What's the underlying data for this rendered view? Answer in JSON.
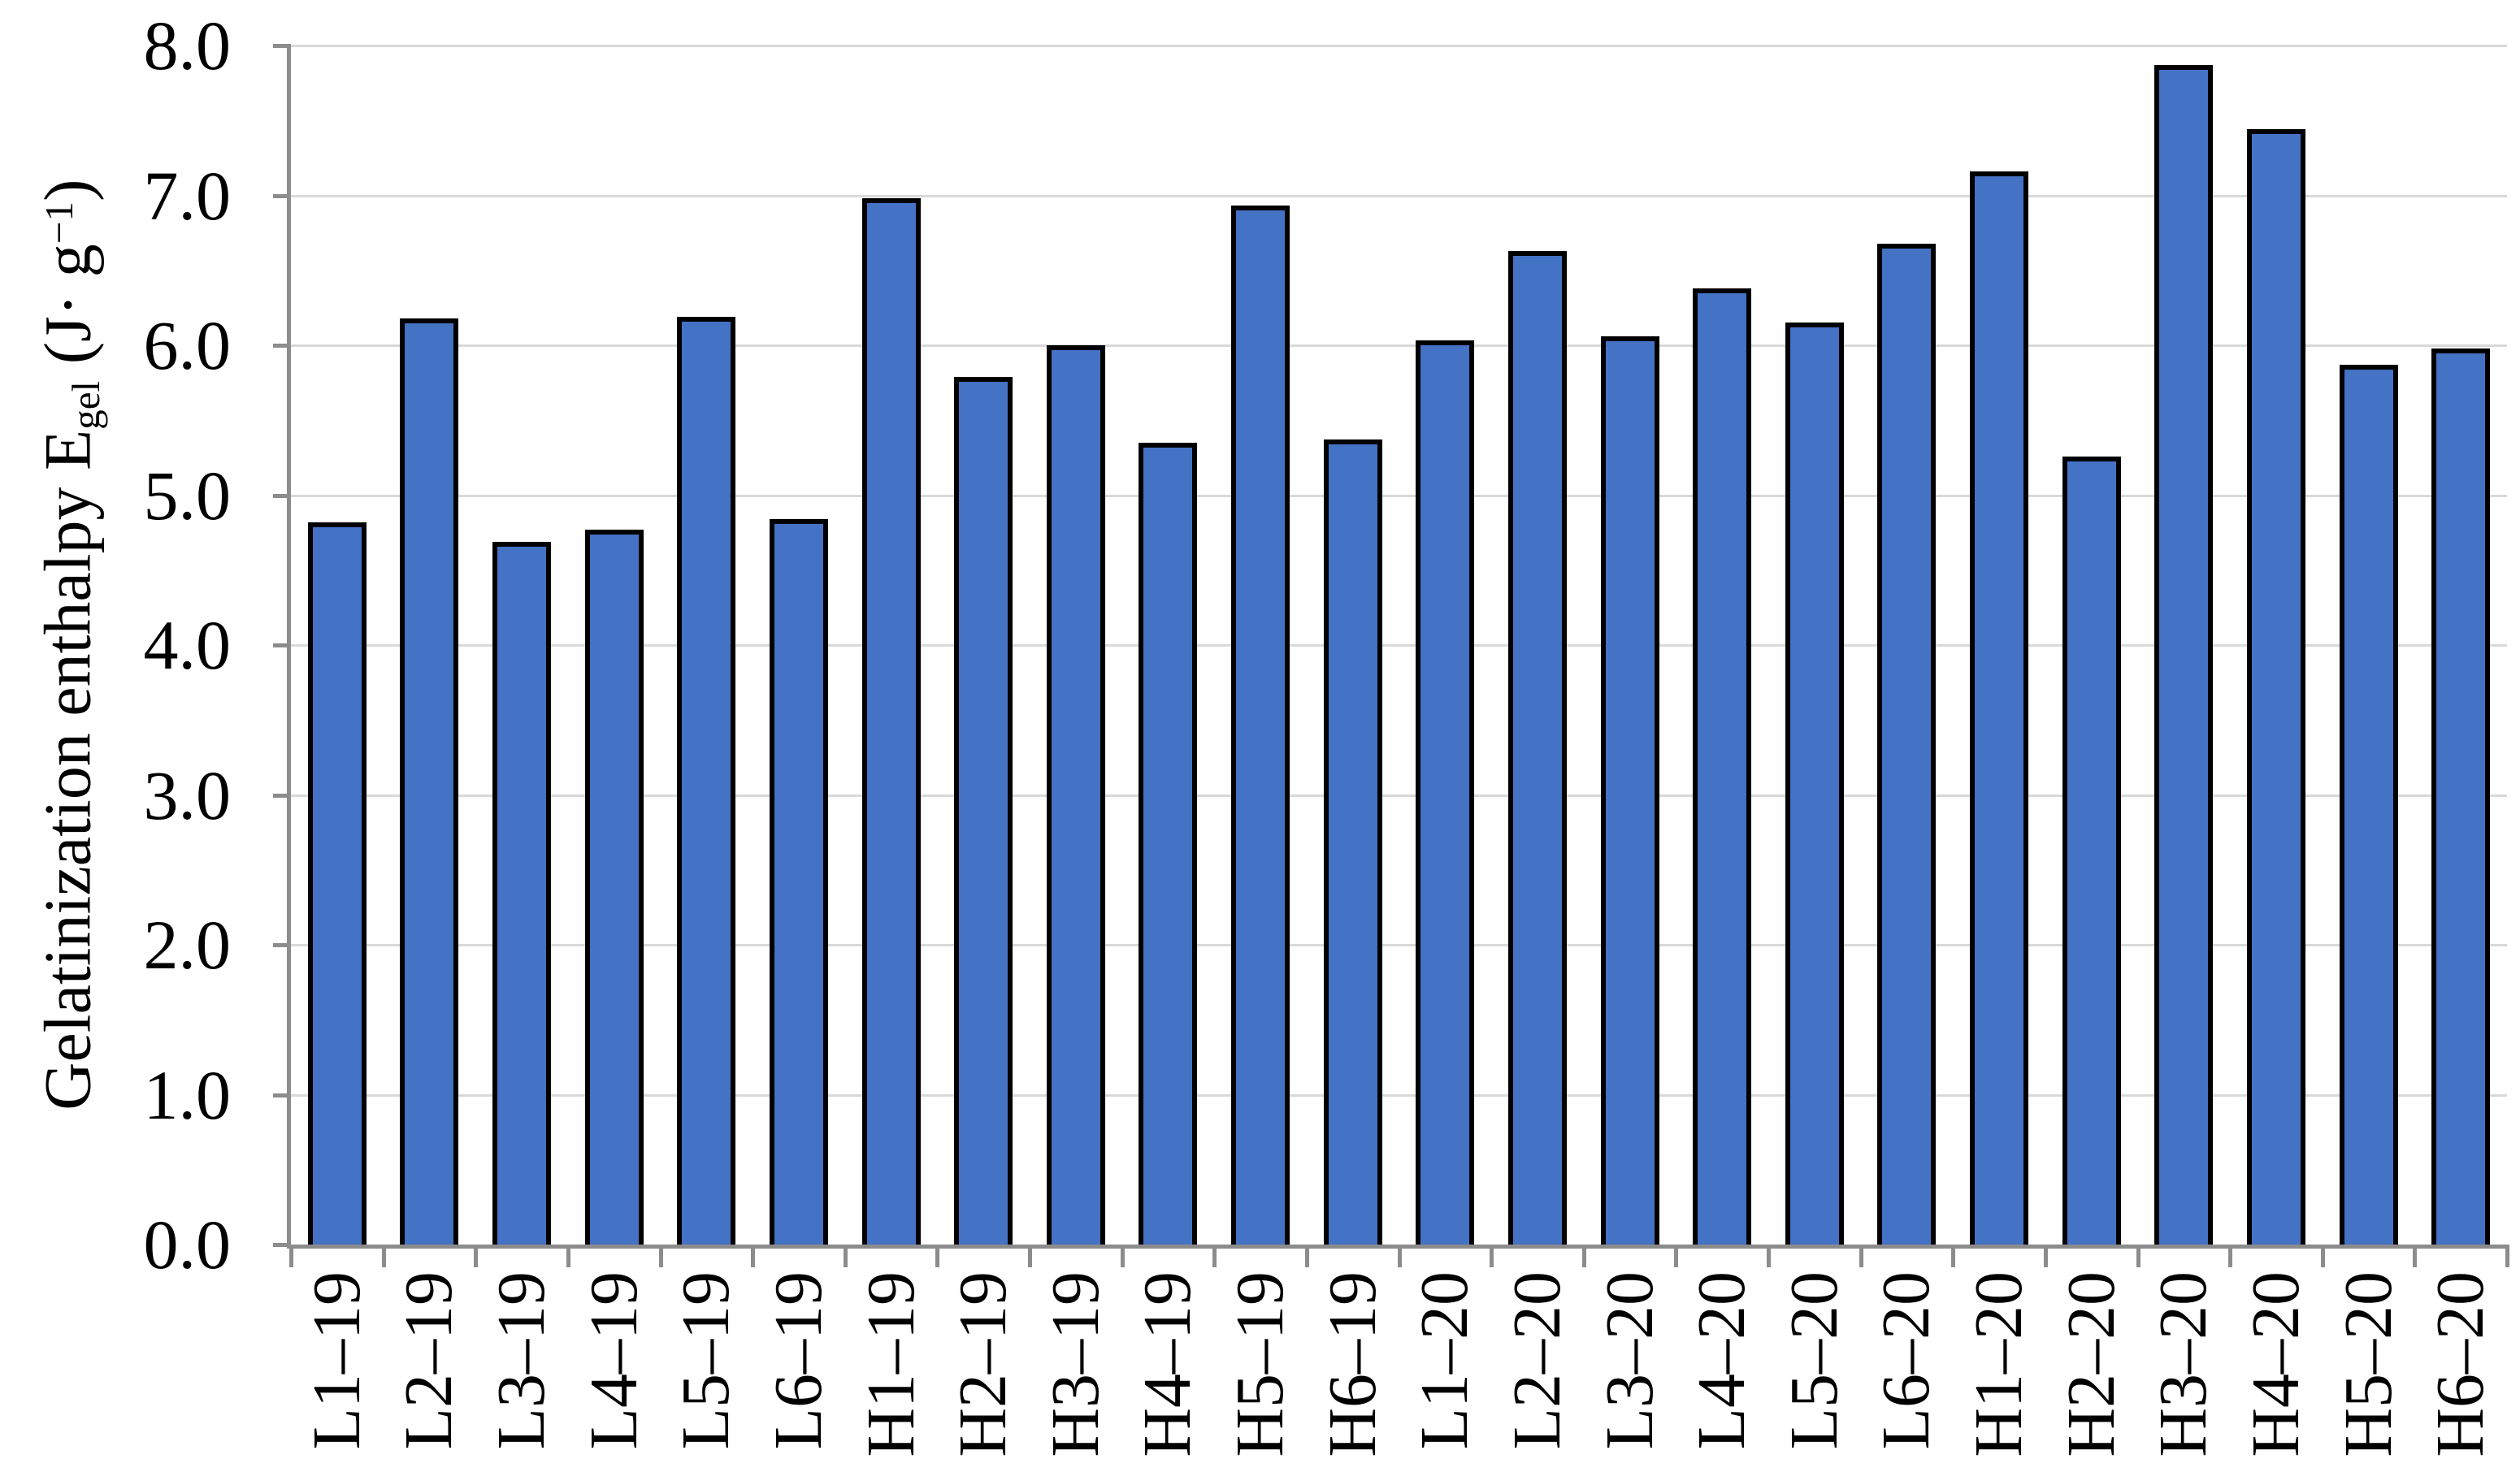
{
  "chart_data": {
    "type": "bar",
    "title": "",
    "xlabel": "",
    "ylabel": "Gelatinization enthalpy Egel (J· g−1)",
    "ylabel_parts": {
      "prefix": "Gelatinization enthalpy E",
      "sub": "gel",
      "mid": " (J· g",
      "sup": "−1",
      "suffix": ")"
    },
    "categories": [
      "L1–19",
      "L2–19",
      "L3–19",
      "L4–19",
      "L5–19",
      "L6–19",
      "H1–19",
      "H2–19",
      "H3–19",
      "H4–19",
      "H5–19",
      "H6–19",
      "L1–20",
      "L2–20",
      "L3–20",
      "L4–20",
      "L5–20",
      "L6–20",
      "H1–20",
      "H2–20",
      "H3–20",
      "H4–20",
      "H5–20",
      "H6–20"
    ],
    "values": [
      4.82,
      6.18,
      4.69,
      4.77,
      6.19,
      4.84,
      6.98,
      5.79,
      6.0,
      5.35,
      6.93,
      5.37,
      6.03,
      6.63,
      6.06,
      6.38,
      6.15,
      6.68,
      7.16,
      5.26,
      7.87,
      7.44,
      5.87,
      5.98
    ],
    "ylim": [
      0,
      8
    ],
    "ytick_step": 1.0,
    "yticks": [
      "0.0",
      "1.0",
      "2.0",
      "3.0",
      "4.0",
      "5.0",
      "6.0",
      "7.0",
      "8.0"
    ],
    "grid": true,
    "legend": "none",
    "colors": {
      "bar_fill": "#4472C4",
      "bar_border": "#000000",
      "axis_line": "#8C8C8C",
      "gridline": "#D9D9D9",
      "text": "#000000",
      "background": "#FFFFFF"
    }
  }
}
